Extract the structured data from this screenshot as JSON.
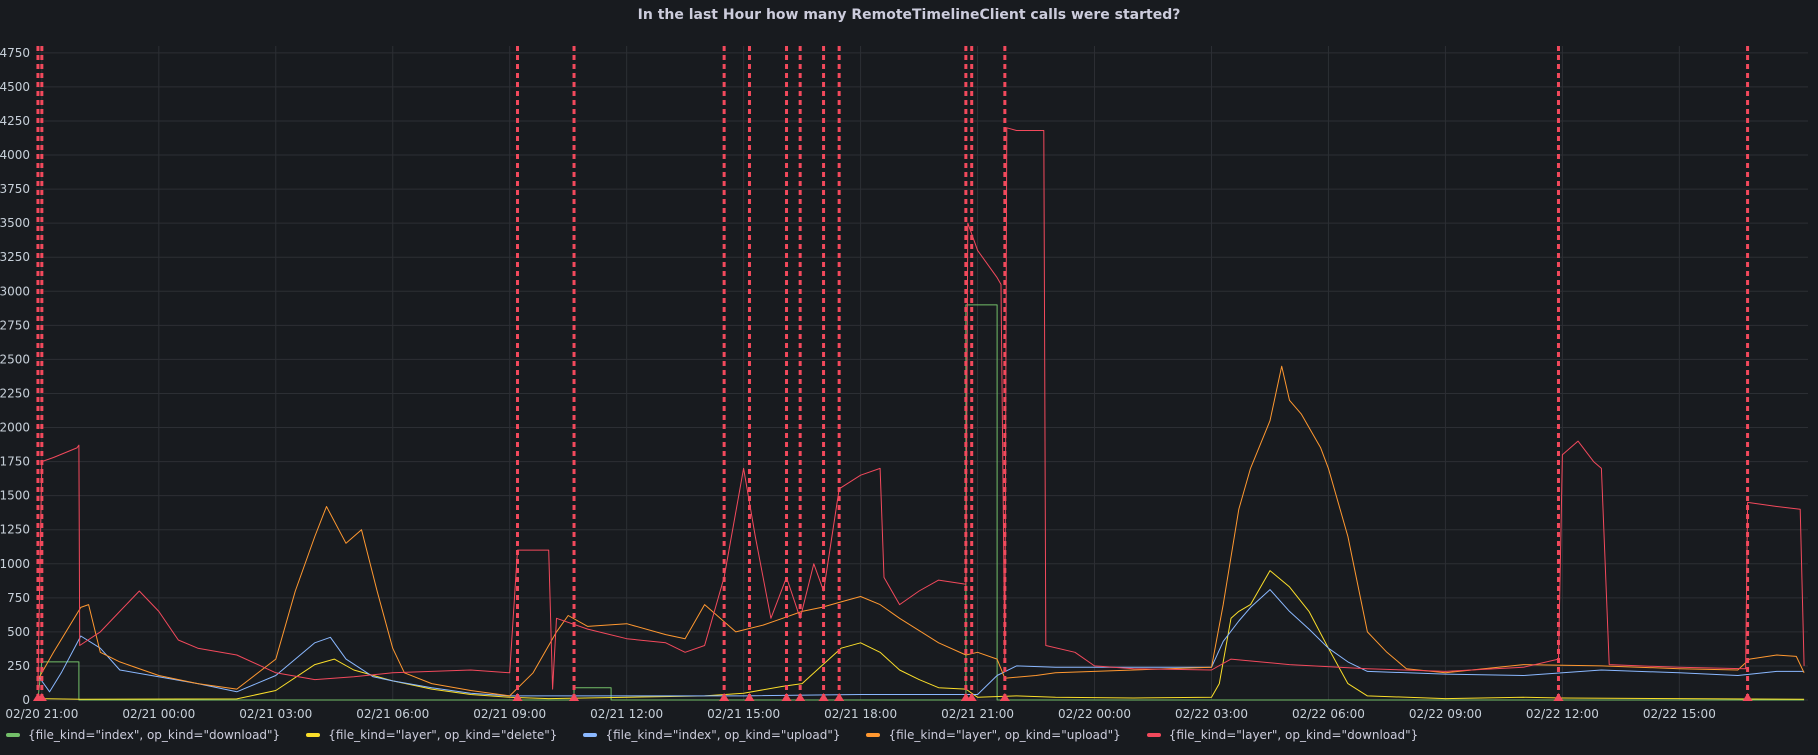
{
  "panel": {
    "title": "In the last Hour how many RemoteTimelineClient calls were started?"
  },
  "chart_data": {
    "type": "line",
    "title": "In the last Hour how many RemoteTimelineClient calls were started?",
    "xlabel": "",
    "ylabel": "",
    "x_unit": "hours since 02/20 21:00",
    "xlim": [
      -0.15,
      45.3
    ],
    "ylim": [
      0,
      4800
    ],
    "grid": true,
    "legend_position": "bottom-left",
    "x_ticks": [
      {
        "x": 0,
        "label": "02/20 21:00"
      },
      {
        "x": 3,
        "label": "02/21 00:00"
      },
      {
        "x": 6,
        "label": "02/21 03:00"
      },
      {
        "x": 9,
        "label": "02/21 06:00"
      },
      {
        "x": 12,
        "label": "02/21 09:00"
      },
      {
        "x": 15,
        "label": "02/21 12:00"
      },
      {
        "x": 18,
        "label": "02/21 15:00"
      },
      {
        "x": 21,
        "label": "02/21 18:00"
      },
      {
        "x": 24,
        "label": "02/21 21:00"
      },
      {
        "x": 27,
        "label": "02/22 00:00"
      },
      {
        "x": 30,
        "label": "02/22 03:00"
      },
      {
        "x": 33,
        "label": "02/22 06:00"
      },
      {
        "x": 36,
        "label": "02/22 09:00"
      },
      {
        "x": 39,
        "label": "02/22 12:00"
      },
      {
        "x": 42,
        "label": "02/22 15:00"
      }
    ],
    "y_ticks": [
      0,
      250,
      500,
      750,
      1000,
      1250,
      1500,
      1750,
      2000,
      2250,
      2500,
      2750,
      3000,
      3250,
      3500,
      3750,
      4000,
      4250,
      4500,
      4750
    ],
    "annotations_x": [
      -0.1,
      0.0,
      12.2,
      13.65,
      17.5,
      18.15,
      19.1,
      19.45,
      20.05,
      20.45,
      23.7,
      23.85,
      24.7,
      38.9,
      43.75
    ],
    "annotation_color": "#f2495c",
    "series": [
      {
        "name": "{file_kind=\"index\", op_kind=\"download\"}",
        "color": "#73bf69",
        "points": [
          [
            -0.1,
            0
          ],
          [
            0,
            280
          ],
          [
            0.95,
            280
          ],
          [
            0.95,
            0
          ],
          [
            13.65,
            0
          ],
          [
            13.65,
            90
          ],
          [
            14.6,
            90
          ],
          [
            14.6,
            0
          ],
          [
            23.7,
            0
          ],
          [
            23.7,
            2900
          ],
          [
            24.5,
            2900
          ],
          [
            24.5,
            0
          ],
          [
            45.2,
            0
          ]
        ]
      },
      {
        "name": "{file_kind=\"layer\", op_kind=\"delete\"}",
        "color": "#fade2a",
        "points": [
          [
            -0.1,
            10
          ],
          [
            1,
            5
          ],
          [
            5,
            8
          ],
          [
            6,
            70
          ],
          [
            7,
            260
          ],
          [
            7.5,
            300
          ],
          [
            8,
            220
          ],
          [
            9,
            140
          ],
          [
            10,
            80
          ],
          [
            11,
            40
          ],
          [
            12,
            20
          ],
          [
            13,
            10
          ],
          [
            17,
            30
          ],
          [
            18,
            50
          ],
          [
            19,
            100
          ],
          [
            19.5,
            120
          ],
          [
            20,
            250
          ],
          [
            20.5,
            380
          ],
          [
            21,
            420
          ],
          [
            21.5,
            350
          ],
          [
            22,
            220
          ],
          [
            22.5,
            150
          ],
          [
            23,
            90
          ],
          [
            23.7,
            80
          ],
          [
            24,
            20
          ],
          [
            25,
            30
          ],
          [
            26,
            20
          ],
          [
            28,
            15
          ],
          [
            30,
            20
          ],
          [
            30.2,
            120
          ],
          [
            30.5,
            600
          ],
          [
            30.7,
            650
          ],
          [
            31,
            700
          ],
          [
            31.5,
            950
          ],
          [
            32,
            830
          ],
          [
            32.5,
            650
          ],
          [
            33,
            380
          ],
          [
            33.5,
            120
          ],
          [
            34,
            30
          ],
          [
            36,
            10
          ],
          [
            38,
            20
          ],
          [
            39,
            15
          ],
          [
            42,
            10
          ],
          [
            45.2,
            5
          ]
        ]
      },
      {
        "name": "{file_kind=\"index\", op_kind=\"upload\"}",
        "color": "#8ab8ff",
        "points": [
          [
            -0.1,
            180
          ],
          [
            0.2,
            60
          ],
          [
            0.5,
            200
          ],
          [
            1,
            470
          ],
          [
            1.5,
            380
          ],
          [
            2,
            220
          ],
          [
            4,
            120
          ],
          [
            5,
            60
          ],
          [
            6,
            180
          ],
          [
            6.5,
            300
          ],
          [
            7,
            420
          ],
          [
            7.4,
            460
          ],
          [
            7.8,
            300
          ],
          [
            8.5,
            170
          ],
          [
            9,
            140
          ],
          [
            10,
            90
          ],
          [
            11,
            50
          ],
          [
            12,
            30
          ],
          [
            18,
            30
          ],
          [
            21,
            40
          ],
          [
            24,
            40
          ],
          [
            24.5,
            180
          ],
          [
            25,
            250
          ],
          [
            26,
            240
          ],
          [
            28,
            240
          ],
          [
            30,
            240
          ],
          [
            30.3,
            430
          ],
          [
            30.7,
            580
          ],
          [
            31,
            680
          ],
          [
            31.5,
            810
          ],
          [
            32,
            650
          ],
          [
            32.5,
            520
          ],
          [
            33,
            380
          ],
          [
            33.5,
            280
          ],
          [
            34,
            210
          ],
          [
            36,
            190
          ],
          [
            38,
            180
          ],
          [
            40,
            220
          ],
          [
            42,
            200
          ],
          [
            43.5,
            180
          ],
          [
            44.5,
            210
          ],
          [
            45.2,
            210
          ]
        ]
      },
      {
        "name": "{file_kind=\"layer\", op_kind=\"upload\"}",
        "color": "#ff9830",
        "points": [
          [
            -0.1,
            150
          ],
          [
            0.3,
            350
          ],
          [
            1,
            680
          ],
          [
            1.2,
            700
          ],
          [
            1.5,
            350
          ],
          [
            2,
            280
          ],
          [
            3,
            180
          ],
          [
            4,
            120
          ],
          [
            5,
            80
          ],
          [
            6,
            300
          ],
          [
            6.5,
            800
          ],
          [
            7,
            1200
          ],
          [
            7.3,
            1420
          ],
          [
            7.8,
            1150
          ],
          [
            8.2,
            1250
          ],
          [
            8.6,
            800
          ],
          [
            9,
            380
          ],
          [
            9.3,
            200
          ],
          [
            10,
            120
          ],
          [
            11,
            70
          ],
          [
            12,
            30
          ],
          [
            12.6,
            200
          ],
          [
            13.2,
            500
          ],
          [
            13.5,
            620
          ],
          [
            14,
            540
          ],
          [
            15,
            560
          ],
          [
            16,
            480
          ],
          [
            16.5,
            450
          ],
          [
            17,
            700
          ],
          [
            17.8,
            500
          ],
          [
            18.5,
            550
          ],
          [
            19,
            600
          ],
          [
            19.5,
            650
          ],
          [
            20,
            680
          ],
          [
            20.5,
            720
          ],
          [
            21,
            760
          ],
          [
            21.5,
            700
          ],
          [
            22,
            600
          ],
          [
            23,
            420
          ],
          [
            23.7,
            330
          ],
          [
            24,
            350
          ],
          [
            24.5,
            300
          ],
          [
            24.7,
            160
          ],
          [
            25.5,
            180
          ],
          [
            26,
            200
          ],
          [
            28,
            220
          ],
          [
            30,
            240
          ],
          [
            30.3,
            700
          ],
          [
            30.7,
            1400
          ],
          [
            31,
            1700
          ],
          [
            31.5,
            2050
          ],
          [
            31.8,
            2450
          ],
          [
            32,
            2200
          ],
          [
            32.3,
            2100
          ],
          [
            32.8,
            1850
          ],
          [
            33,
            1700
          ],
          [
            33.5,
            1200
          ],
          [
            34,
            500
          ],
          [
            34.5,
            350
          ],
          [
            35,
            230
          ],
          [
            36,
            200
          ],
          [
            38,
            260
          ],
          [
            40,
            250
          ],
          [
            42,
            230
          ],
          [
            43.5,
            220
          ],
          [
            43.8,
            300
          ],
          [
            44.5,
            330
          ],
          [
            45,
            320
          ],
          [
            45.2,
            200
          ]
        ]
      },
      {
        "name": "{file_kind=\"layer\", op_kind=\"download\"}",
        "color": "#f2495c",
        "points": [
          [
            -0.1,
            100
          ],
          [
            0,
            1750
          ],
          [
            0.3,
            1780
          ],
          [
            0.9,
            1850
          ],
          [
            0.95,
            1870
          ],
          [
            0.97,
            400
          ],
          [
            1.5,
            500
          ],
          [
            2,
            650
          ],
          [
            2.5,
            800
          ],
          [
            3,
            650
          ],
          [
            3.5,
            440
          ],
          [
            4,
            380
          ],
          [
            5,
            330
          ],
          [
            6,
            200
          ],
          [
            7,
            150
          ],
          [
            8,
            170
          ],
          [
            9,
            200
          ],
          [
            11,
            220
          ],
          [
            12,
            200
          ],
          [
            12.2,
            1100
          ],
          [
            13,
            1100
          ],
          [
            13.1,
            80
          ],
          [
            13.2,
            600
          ],
          [
            14,
            520
          ],
          [
            15,
            450
          ],
          [
            16,
            420
          ],
          [
            16.5,
            350
          ],
          [
            17,
            400
          ],
          [
            17.5,
            900
          ],
          [
            18,
            1700
          ],
          [
            18.3,
            1200
          ],
          [
            18.7,
            600
          ],
          [
            19.1,
            900
          ],
          [
            19.45,
            600
          ],
          [
            19.8,
            1000
          ],
          [
            20.05,
            800
          ],
          [
            20.45,
            1550
          ],
          [
            21,
            1650
          ],
          [
            21.5,
            1700
          ],
          [
            21.6,
            900
          ],
          [
            22,
            700
          ],
          [
            22.5,
            800
          ],
          [
            23,
            880
          ],
          [
            23.7,
            850
          ],
          [
            23.75,
            3500
          ],
          [
            24,
            3300
          ],
          [
            24.5,
            3100
          ],
          [
            24.6,
            3050
          ],
          [
            24.7,
            300
          ],
          [
            24.75,
            4200
          ],
          [
            25,
            4180
          ],
          [
            25.7,
            4180
          ],
          [
            25.75,
            400
          ],
          [
            26.5,
            350
          ],
          [
            27,
            250
          ],
          [
            28,
            230
          ],
          [
            30,
            220
          ],
          [
            30.5,
            300
          ],
          [
            32,
            260
          ],
          [
            34,
            230
          ],
          [
            36,
            210
          ],
          [
            38,
            240
          ],
          [
            38.9,
            300
          ],
          [
            39,
            1800
          ],
          [
            39.4,
            1900
          ],
          [
            39.8,
            1750
          ],
          [
            40,
            1700
          ],
          [
            40.2,
            260
          ],
          [
            41,
            250
          ],
          [
            42,
            240
          ],
          [
            43.7,
            230
          ],
          [
            43.75,
            1450
          ],
          [
            44.5,
            1420
          ],
          [
            45.1,
            1400
          ],
          [
            45.2,
            250
          ]
        ]
      }
    ]
  }
}
